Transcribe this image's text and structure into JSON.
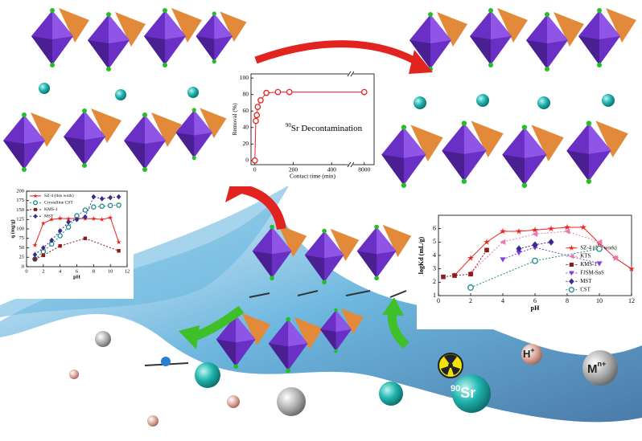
{
  "chart_data": [
    {
      "type": "line",
      "xlabel": "Contact time (min)",
      "ylabel": "Removal (%)",
      "annotation": {
        "mass": "90",
        "text": "Sr Decontamination"
      },
      "x": [
        0,
        5,
        10,
        15,
        30,
        60,
        120,
        180,
        8000
      ],
      "values": [
        0,
        48,
        55,
        65,
        73,
        82,
        83,
        83,
        83
      ],
      "color": "#e8231f",
      "marker": "circle",
      "xlim": [
        -20,
        8200
      ],
      "x_break": [
        480,
        7800
      ],
      "xticks": [
        0,
        200,
        400,
        8000
      ],
      "ylim": [
        -5,
        105
      ],
      "yticks": [
        0,
        20,
        40,
        60,
        80,
        100
      ]
    },
    {
      "type": "line",
      "xlabel": "pH",
      "ylabel": "q (mg/g)",
      "legend": "upper left",
      "xlim": [
        0,
        12
      ],
      "xticks": [
        0,
        2,
        4,
        6,
        8,
        10,
        12
      ],
      "ylim": [
        0,
        200
      ],
      "yticks": [
        0,
        25,
        50,
        75,
        100,
        125,
        150,
        175,
        200
      ],
      "series": [
        {
          "name": "SZ-4 (this work)",
          "color": "#e8231f",
          "marker": "star",
          "dash": false,
          "x": [
            1,
            2,
            3,
            4,
            5,
            6,
            7,
            8,
            9,
            10,
            11
          ],
          "values": [
            57,
            115,
            125,
            128,
            127,
            128,
            127,
            127,
            125,
            130,
            65
          ]
        },
        {
          "name": "Crystalline CST",
          "color": "#1b8a8a",
          "marker": "circle",
          "dash": true,
          "x": [
            1,
            2,
            3,
            4,
            5,
            6,
            7,
            8,
            9,
            10,
            11
          ],
          "values": [
            20,
            40,
            60,
            82,
            105,
            135,
            150,
            158,
            160,
            162,
            163
          ]
        },
        {
          "name": "KMS-1",
          "color": "#8b1a1a",
          "marker": "square",
          "dash": true,
          "x": [
            1,
            2,
            4,
            7,
            11
          ],
          "values": [
            20,
            30,
            55,
            75,
            42
          ]
        },
        {
          "name": "MST",
          "color": "#3a2c8c",
          "marker": "diamond",
          "dash": true,
          "x": [
            1,
            2,
            3,
            4,
            5,
            6,
            7,
            8,
            9,
            10,
            11
          ],
          "values": [
            32,
            50,
            70,
            95,
            118,
            125,
            132,
            185,
            180,
            183,
            185
          ]
        }
      ]
    },
    {
      "type": "line",
      "xlabel": "pH",
      "ylabel": "logKd (mL/g)",
      "legend": "lower right",
      "xlim": [
        0,
        12
      ],
      "xticks": [
        0,
        2,
        4,
        6,
        8,
        10,
        12
      ],
      "ylim": [
        1,
        7
      ],
      "yticks": [
        1,
        2,
        3,
        4,
        5,
        6
      ],
      "series": [
        {
          "name": "SZ-4 (this work)",
          "color": "#e8231f",
          "marker": "star",
          "dash": false,
          "x": [
            1,
            2,
            3,
            4,
            5,
            6,
            7,
            8,
            9,
            10,
            11,
            12
          ],
          "values": [
            2.5,
            3.8,
            5.0,
            5.8,
            5.8,
            5.9,
            6.0,
            6.1,
            6.1,
            4.9,
            3.8,
            3.0
          ]
        },
        {
          "name": "KTS",
          "color": "#e87ab0",
          "marker": "triangle-left",
          "dash": true,
          "x": [
            2,
            4,
            6,
            8,
            10,
            11
          ],
          "values": [
            2.7,
            5.0,
            5.6,
            5.8,
            5.0,
            3.8
          ]
        },
        {
          "name": "KMS-1",
          "color": "#8b1a1a",
          "marker": "square",
          "dash": true,
          "x": [
            0.3,
            1,
            2,
            3
          ],
          "values": [
            2.4,
            2.5,
            2.6,
            4.4
          ]
        },
        {
          "name": "FJSM-SnS",
          "color": "#8a3ee0",
          "marker": "triangle-down",
          "dash": true,
          "x": [
            4,
            5,
            6,
            10
          ],
          "values": [
            3.7,
            4.2,
            4.6,
            3.4
          ]
        },
        {
          "name": "MST",
          "color": "#3a2c8c",
          "marker": "diamond",
          "dash": true,
          "x": [
            5,
            6,
            7
          ],
          "values": [
            4.5,
            4.8,
            5.0
          ]
        },
        {
          "name": "CST",
          "color": "#1b8a8a",
          "marker": "circle",
          "dash": true,
          "x": [
            2,
            6,
            10
          ],
          "values": [
            1.6,
            3.6,
            4.5
          ]
        }
      ]
    }
  ],
  "ions": {
    "sr_mass": "90",
    "sr": "Sr",
    "h": "H",
    "h_charge": "+",
    "m": "M",
    "m_charge": "n+"
  }
}
